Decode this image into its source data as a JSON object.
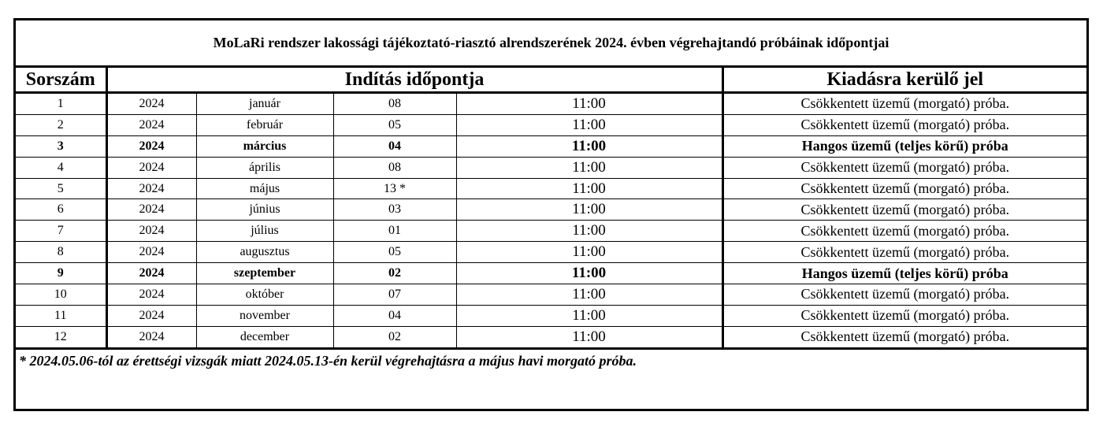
{
  "title": "MoLaRi rendszer lakossági tájékoztató-riasztó alrendszerének 2024. évben végrehajtandó próbáinak időpontjai",
  "headers": {
    "number": "Sorszám",
    "start": "Indítás időpontja",
    "signal": "Kiadásra kerülő jel"
  },
  "rows": [
    {
      "n": "1",
      "year": "2024",
      "month": "január",
      "day": "08",
      "time": "11:00",
      "signal": "Csökkentett üzemű (morgató) próba.",
      "bold": false
    },
    {
      "n": "2",
      "year": "2024",
      "month": "február",
      "day": "05",
      "time": "11:00",
      "signal": "Csökkentett üzemű (morgató) próba.",
      "bold": false
    },
    {
      "n": "3",
      "year": "2024",
      "month": "március",
      "day": "04",
      "time": "11:00",
      "signal": "Hangos üzemű (teljes körű) próba",
      "bold": true
    },
    {
      "n": "4",
      "year": "2024",
      "month": "április",
      "day": "08",
      "time": "11:00",
      "signal": "Csökkentett üzemű (morgató) próba.",
      "bold": false
    },
    {
      "n": "5",
      "year": "2024",
      "month": "május",
      "day": "13 *",
      "time": "11:00",
      "signal": "Csökkentett üzemű (morgató) próba.",
      "bold": false
    },
    {
      "n": "6",
      "year": "2024",
      "month": "június",
      "day": "03",
      "time": "11:00",
      "signal": "Csökkentett üzemű (morgató) próba.",
      "bold": false
    },
    {
      "n": "7",
      "year": "2024",
      "month": "július",
      "day": "01",
      "time": "11:00",
      "signal": "Csökkentett üzemű (morgató) próba.",
      "bold": false
    },
    {
      "n": "8",
      "year": "2024",
      "month": "augusztus",
      "day": "05",
      "time": "11:00",
      "signal": "Csökkentett üzemű (morgató) próba.",
      "bold": false
    },
    {
      "n": "9",
      "year": "2024",
      "month": "szeptember",
      "day": "02",
      "time": "11:00",
      "signal": "Hangos üzemű (teljes körű) próba",
      "bold": true
    },
    {
      "n": "10",
      "year": "2024",
      "month": "október",
      "day": "07",
      "time": "11:00",
      "signal": "Csökkentett üzemű (morgató) próba.",
      "bold": false
    },
    {
      "n": "11",
      "year": "2024",
      "month": "november",
      "day": "04",
      "time": "11:00",
      "signal": "Csökkentett üzemű (morgató) próba.",
      "bold": false
    },
    {
      "n": "12",
      "year": "2024",
      "month": "december",
      "day": "02",
      "time": "11:00",
      "signal": "Csökkentett üzemű (morgató) próba.",
      "bold": false
    }
  ],
  "footnote": "*  2024.05.06-tól az érettségi vizsgák miatt 2024.05.13-én kerül végrehajtásra a május havi morgató próba."
}
